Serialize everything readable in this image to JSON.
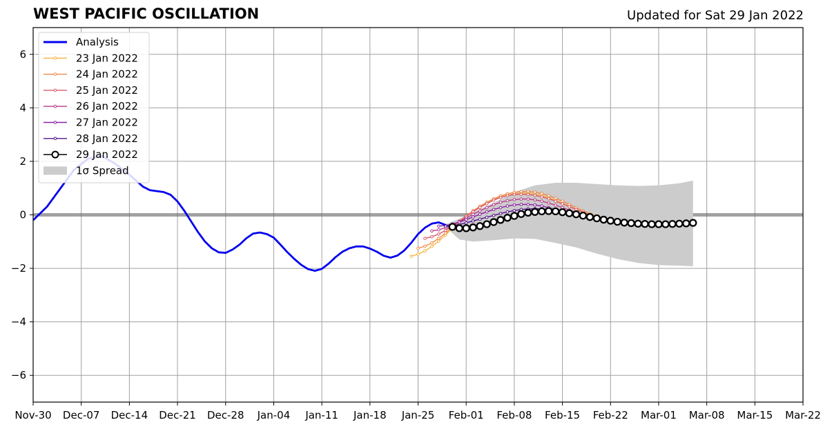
{
  "header": {
    "title": "WEST PACIFIC OSCILLATION",
    "updated": "Updated for Sat 29 Jan 2022"
  },
  "chart_data": {
    "type": "line",
    "title": "WEST PACIFIC OSCILLATION",
    "xlabel": "",
    "ylabel": "",
    "x_tick_labels": [
      "Nov-30",
      "Dec-07",
      "Dec-14",
      "Dec-21",
      "Dec-28",
      "Jan-04",
      "Jan-11",
      "Jan-18",
      "Jan-25",
      "Feb-01",
      "Feb-08",
      "Feb-15",
      "Feb-22",
      "Mar-01",
      "Mar-08",
      "Mar-15",
      "Mar-22"
    ],
    "x_tick_days": [
      0,
      7,
      14,
      21,
      28,
      35,
      42,
      49,
      56,
      63,
      70,
      77,
      84,
      91,
      98,
      105,
      112
    ],
    "x_range_days": [
      0,
      112
    ],
    "ylim": [
      -7,
      7
    ],
    "y_ticks": [
      -6,
      -4,
      -2,
      0,
      2,
      4,
      6
    ],
    "y_tick_labels": [
      "−6",
      "−4",
      "−2",
      "0",
      "2",
      "4",
      "6"
    ],
    "grid": true,
    "zero_line": true,
    "legend_position": "upper-left",
    "legend": [
      {
        "label": "Analysis",
        "style": "thick-line",
        "color": "#0000ee"
      },
      {
        "label": "23 Jan 2022",
        "style": "marker-line",
        "color": "#f5b53c"
      },
      {
        "label": "24 Jan 2022",
        "style": "marker-line",
        "color": "#ee8a48"
      },
      {
        "label": "25 Jan 2022",
        "style": "marker-line",
        "color": "#d8596a"
      },
      {
        "label": "26 Jan 2022",
        "style": "marker-line",
        "color": "#b83a8a"
      },
      {
        "label": "27 Jan 2022",
        "style": "marker-line",
        "color": "#8a1ea2"
      },
      {
        "label": "28 Jan 2022",
        "style": "marker-line",
        "color": "#52108a"
      },
      {
        "label": "29 Jan 2022",
        "style": "big-marker-line",
        "color": "#000000"
      },
      {
        "label": "1σ Spread",
        "style": "patch",
        "color": "#cccccc"
      }
    ],
    "analysis": {
      "name": "Analysis",
      "color": "#0000ee",
      "x_dates": [
        "2021-11-30",
        "2021-12-02",
        "2021-12-04",
        "2021-12-06",
        "2021-12-08",
        "2021-12-10",
        "2021-12-12",
        "2021-12-14",
        "2021-12-16",
        "2021-12-17",
        "2021-12-19",
        "2021-12-20",
        "2021-12-21",
        "2021-12-22",
        "2021-12-23",
        "2021-12-24",
        "2021-12-25",
        "2021-12-26",
        "2021-12-27",
        "2021-12-28",
        "2021-12-29",
        "2021-12-30",
        "2021-12-31",
        "2022-01-01",
        "2022-01-02",
        "2022-01-03",
        "2022-01-04",
        "2022-01-05",
        "2022-01-06",
        "2022-01-07",
        "2022-01-08",
        "2022-01-09",
        "2022-01-10",
        "2022-01-11",
        "2022-01-12",
        "2022-01-13",
        "2022-01-14",
        "2022-01-15",
        "2022-01-16",
        "2022-01-17",
        "2022-01-18",
        "2022-01-19",
        "2022-01-20",
        "2022-01-21",
        "2022-01-22",
        "2022-01-23",
        "2022-01-24",
        "2022-01-25",
        "2022-01-26",
        "2022-01-27",
        "2022-01-28",
        "2022-01-29"
      ],
      "values": [
        -0.2,
        0.3,
        1.0,
        1.7,
        2.1,
        2.2,
        1.9,
        1.5,
        1.05,
        0.92,
        0.85,
        0.75,
        0.5,
        0.15,
        -0.25,
        -0.65,
        -1.0,
        -1.25,
        -1.4,
        -1.42,
        -1.3,
        -1.12,
        -0.88,
        -0.7,
        -0.66,
        -0.72,
        -0.85,
        -1.12,
        -1.4,
        -1.65,
        -1.87,
        -2.03,
        -2.09,
        -2.02,
        -1.82,
        -1.58,
        -1.38,
        -1.25,
        -1.18,
        -1.18,
        -1.26,
        -1.38,
        -1.53,
        -1.6,
        -1.52,
        -1.33,
        -1.05,
        -0.72,
        -0.48,
        -0.33,
        -0.28,
        -0.38
      ]
    },
    "series": [
      {
        "name": "23 Jan 2022",
        "color": "#f5b53c",
        "x_dates": [
          "2022-01-24",
          "2022-01-25",
          "2022-01-26",
          "2022-01-27",
          "2022-01-28",
          "2022-01-29",
          "2022-01-30",
          "2022-01-31",
          "2022-02-01",
          "2022-02-02",
          "2022-02-03",
          "2022-02-04",
          "2022-02-05",
          "2022-02-06",
          "2022-02-07",
          "2022-02-08",
          "2022-02-09",
          "2022-02-10",
          "2022-02-11",
          "2022-02-12",
          "2022-02-13",
          "2022-02-14",
          "2022-02-15",
          "2022-02-16",
          "2022-02-17",
          "2022-02-18",
          "2022-02-19",
          "2022-02-20",
          "2022-02-21",
          "2022-02-22",
          "2022-02-23"
        ],
        "values": [
          -1.55,
          -1.47,
          -1.35,
          -1.18,
          -0.98,
          -0.75,
          -0.5,
          -0.28,
          -0.06,
          0.12,
          0.28,
          0.43,
          0.56,
          0.67,
          0.74,
          0.79,
          0.81,
          0.81,
          0.78,
          0.72,
          0.64,
          0.54,
          0.43,
          0.32,
          0.21,
          0.1,
          0.0,
          -0.08,
          -0.15,
          -0.2,
          -0.23
        ]
      },
      {
        "name": "24 Jan 2022",
        "color": "#ee8a48",
        "x_dates": [
          "2022-01-25",
          "2022-01-26",
          "2022-01-27",
          "2022-01-28",
          "2022-01-29",
          "2022-01-30",
          "2022-01-31",
          "2022-02-01",
          "2022-02-02",
          "2022-02-03",
          "2022-02-04",
          "2022-02-05",
          "2022-02-06",
          "2022-02-07",
          "2022-02-08",
          "2022-02-09",
          "2022-02-10",
          "2022-02-11",
          "2022-02-12",
          "2022-02-13",
          "2022-02-14",
          "2022-02-15",
          "2022-02-16",
          "2022-02-17",
          "2022-02-18",
          "2022-02-19",
          "2022-02-20",
          "2022-02-21",
          "2022-02-22",
          "2022-02-23",
          "2022-02-24"
        ],
        "values": [
          -1.25,
          -1.17,
          -1.05,
          -0.88,
          -0.68,
          -0.46,
          -0.24,
          -0.04,
          0.15,
          0.32,
          0.47,
          0.6,
          0.71,
          0.79,
          0.84,
          0.87,
          0.87,
          0.85,
          0.8,
          0.72,
          0.62,
          0.51,
          0.39,
          0.27,
          0.15,
          0.04,
          -0.06,
          -0.14,
          -0.2,
          -0.24,
          -0.26
        ]
      },
      {
        "name": "25 Jan 2022",
        "color": "#d8596a",
        "x_dates": [
          "2022-01-26",
          "2022-01-27",
          "2022-01-28",
          "2022-01-29",
          "2022-01-30",
          "2022-01-31",
          "2022-02-01",
          "2022-02-02",
          "2022-02-03",
          "2022-02-04",
          "2022-02-05",
          "2022-02-06",
          "2022-02-07",
          "2022-02-08",
          "2022-02-09",
          "2022-02-10",
          "2022-02-11",
          "2022-02-12",
          "2022-02-13",
          "2022-02-14",
          "2022-02-15",
          "2022-02-16",
          "2022-02-17",
          "2022-02-18",
          "2022-02-19",
          "2022-02-20",
          "2022-02-21",
          "2022-02-22",
          "2022-02-23",
          "2022-02-24",
          "2022-02-25"
        ],
        "values": [
          -0.88,
          -0.82,
          -0.72,
          -0.58,
          -0.42,
          -0.24,
          -0.06,
          0.12,
          0.28,
          0.42,
          0.55,
          0.65,
          0.72,
          0.76,
          0.77,
          0.76,
          0.73,
          0.67,
          0.6,
          0.51,
          0.41,
          0.31,
          0.2,
          0.1,
          0.0,
          -0.09,
          -0.16,
          -0.22,
          -0.26,
          -0.28,
          -0.3
        ]
      },
      {
        "name": "26 Jan 2022",
        "color": "#b83a8a",
        "x_dates": [
          "2022-01-27",
          "2022-01-28",
          "2022-01-29",
          "2022-01-30",
          "2022-01-31",
          "2022-02-01",
          "2022-02-02",
          "2022-02-03",
          "2022-02-04",
          "2022-02-05",
          "2022-02-06",
          "2022-02-07",
          "2022-02-08",
          "2022-02-09",
          "2022-02-10",
          "2022-02-11",
          "2022-02-12",
          "2022-02-13",
          "2022-02-14",
          "2022-02-15",
          "2022-02-16",
          "2022-02-17",
          "2022-02-18",
          "2022-02-19",
          "2022-02-20",
          "2022-02-21",
          "2022-02-22",
          "2022-02-23",
          "2022-02-24",
          "2022-02-25",
          "2022-02-26"
        ],
        "values": [
          -0.6,
          -0.56,
          -0.48,
          -0.38,
          -0.26,
          -0.12,
          0.02,
          0.15,
          0.27,
          0.38,
          0.47,
          0.53,
          0.57,
          0.59,
          0.59,
          0.56,
          0.51,
          0.44,
          0.36,
          0.27,
          0.18,
          0.09,
          0.0,
          -0.08,
          -0.15,
          -0.2,
          -0.24,
          -0.27,
          -0.29,
          -0.3,
          -0.31
        ]
      },
      {
        "name": "27 Jan 2022",
        "color": "#8a1ea2",
        "x_dates": [
          "2022-01-28",
          "2022-01-29",
          "2022-01-30",
          "2022-01-31",
          "2022-02-01",
          "2022-02-02",
          "2022-02-03",
          "2022-02-04",
          "2022-02-05",
          "2022-02-06",
          "2022-02-07",
          "2022-02-08",
          "2022-02-09",
          "2022-02-10",
          "2022-02-11",
          "2022-02-12",
          "2022-02-13",
          "2022-02-14",
          "2022-02-15",
          "2022-02-16",
          "2022-02-17",
          "2022-02-18",
          "2022-02-19",
          "2022-02-20",
          "2022-02-21",
          "2022-02-22",
          "2022-02-23",
          "2022-02-24",
          "2022-02-25",
          "2022-02-26",
          "2022-02-27"
        ],
        "values": [
          -0.42,
          -0.4,
          -0.34,
          -0.27,
          -0.18,
          -0.08,
          0.02,
          0.11,
          0.2,
          0.27,
          0.33,
          0.37,
          0.39,
          0.39,
          0.37,
          0.33,
          0.27,
          0.2,
          0.13,
          0.06,
          -0.01,
          -0.07,
          -0.13,
          -0.18,
          -0.22,
          -0.25,
          -0.27,
          -0.29,
          -0.3,
          -0.31,
          -0.31
        ]
      },
      {
        "name": "28 Jan 2022",
        "color": "#52108a",
        "x_dates": [
          "2022-01-29",
          "2022-01-30",
          "2022-01-31",
          "2022-02-01",
          "2022-02-02",
          "2022-02-03",
          "2022-02-04",
          "2022-02-05",
          "2022-02-06",
          "2022-02-07",
          "2022-02-08",
          "2022-02-09",
          "2022-02-10",
          "2022-02-11",
          "2022-02-12",
          "2022-02-13",
          "2022-02-14",
          "2022-02-15",
          "2022-02-16",
          "2022-02-17",
          "2022-02-18",
          "2022-02-19",
          "2022-02-20",
          "2022-02-21",
          "2022-02-22",
          "2022-02-23",
          "2022-02-24",
          "2022-02-25",
          "2022-02-26",
          "2022-02-27",
          "2022-02-28"
        ],
        "values": [
          -0.42,
          -0.4,
          -0.36,
          -0.3,
          -0.23,
          -0.16,
          -0.09,
          -0.02,
          0.05,
          0.11,
          0.16,
          0.2,
          0.22,
          0.23,
          0.22,
          0.2,
          0.16,
          0.11,
          0.05,
          -0.01,
          -0.06,
          -0.11,
          -0.16,
          -0.2,
          -0.23,
          -0.26,
          -0.28,
          -0.3,
          -0.31,
          -0.32,
          -0.32
        ]
      },
      {
        "name": "29 Jan 2022",
        "color": "#000000",
        "big_markers": true,
        "x_dates": [
          "2022-01-30",
          "2022-01-31",
          "2022-02-01",
          "2022-02-02",
          "2022-02-03",
          "2022-02-04",
          "2022-02-05",
          "2022-02-06",
          "2022-02-07",
          "2022-02-08",
          "2022-02-09",
          "2022-02-10",
          "2022-02-11",
          "2022-02-12",
          "2022-02-13",
          "2022-02-14",
          "2022-02-15",
          "2022-02-16",
          "2022-02-17",
          "2022-02-18",
          "2022-02-19",
          "2022-02-20",
          "2022-02-21",
          "2022-02-22",
          "2022-02-23",
          "2022-02-24",
          "2022-02-25",
          "2022-02-26",
          "2022-02-27",
          "2022-02-28",
          "2022-03-01",
          "2022-03-02",
          "2022-03-03",
          "2022-03-04",
          "2022-03-05",
          "2022-03-06"
        ],
        "values": [
          -0.45,
          -0.5,
          -0.5,
          -0.47,
          -0.42,
          -0.35,
          -0.27,
          -0.19,
          -0.11,
          -0.04,
          0.03,
          0.08,
          0.11,
          0.13,
          0.14,
          0.13,
          0.1,
          0.06,
          0.02,
          -0.03,
          -0.08,
          -0.13,
          -0.18,
          -0.22,
          -0.26,
          -0.29,
          -0.31,
          -0.33,
          -0.34,
          -0.35,
          -0.35,
          -0.35,
          -0.34,
          -0.33,
          -0.32,
          -0.3
        ]
      }
    ],
    "spread": {
      "name": "1σ Spread",
      "color": "#cccccc",
      "x_dates": [
        "2022-01-29",
        "2022-01-31",
        "2022-02-02",
        "2022-02-05",
        "2022-02-08",
        "2022-02-11",
        "2022-02-14",
        "2022-02-17",
        "2022-02-20",
        "2022-02-23",
        "2022-02-26",
        "2022-03-01",
        "2022-03-04",
        "2022-03-06"
      ],
      "upper": [
        -0.35,
        -0.15,
        0.1,
        0.45,
        0.85,
        1.1,
        1.2,
        1.2,
        1.15,
        1.1,
        1.08,
        1.1,
        1.18,
        1.28
      ],
      "lower": [
        -0.45,
        -0.92,
        -1.0,
        -0.95,
        -0.88,
        -0.9,
        -1.05,
        -1.22,
        -1.45,
        -1.65,
        -1.8,
        -1.88,
        -1.9,
        -1.92
      ]
    }
  }
}
